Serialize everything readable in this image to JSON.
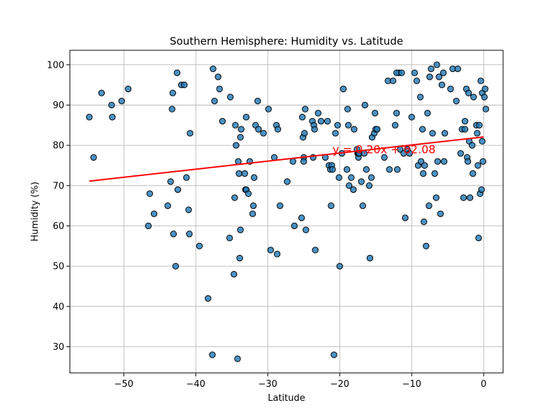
{
  "chart_data": {
    "type": "scatter",
    "title": "Southern Hemisphere: Humidity vs. Latitude",
    "xlabel": "Latitude",
    "ylabel": "Humidity (%)",
    "xlim": [
      -57.5,
      2.7
    ],
    "ylim": [
      23.5,
      103.6
    ],
    "xticks": [
      -50,
      -40,
      -30,
      -20,
      -10,
      0
    ],
    "yticks": [
      30,
      40,
      50,
      60,
      70,
      80,
      90,
      100
    ],
    "xtick_labels": [
      "−50",
      "−40",
      "−30",
      "−20",
      "−10",
      "0"
    ],
    "ytick_labels": [
      "30",
      "40",
      "50",
      "60",
      "70",
      "80",
      "90",
      "100"
    ],
    "grid": true,
    "marker_color": "#1f77b4",
    "regression": {
      "equation": "y = 0.20x + 82.08",
      "slope": 0.2,
      "intercept": 82.08,
      "x_range": [
        -54.8,
        0
      ],
      "color": "#ff0000",
      "annotation_position": [
        -21,
        78
      ]
    },
    "points": [
      [
        -54.8,
        87
      ],
      [
        -54.2,
        77
      ],
      [
        -53.1,
        93
      ],
      [
        -51.7,
        90
      ],
      [
        -51.6,
        87
      ],
      [
        -50.3,
        91
      ],
      [
        -49.4,
        94
      ],
      [
        -46.6,
        60
      ],
      [
        -46.4,
        68
      ],
      [
        -45.8,
        63
      ],
      [
        -43.9,
        65
      ],
      [
        -43.5,
        71
      ],
      [
        -43.3,
        89
      ],
      [
        -43.2,
        93
      ],
      [
        -43.1,
        58
      ],
      [
        -42.8,
        50
      ],
      [
        -42.6,
        98
      ],
      [
        -42.5,
        69
      ],
      [
        -42.0,
        95
      ],
      [
        -41.6,
        95
      ],
      [
        -41.3,
        72
      ],
      [
        -41.0,
        64
      ],
      [
        -40.9,
        58
      ],
      [
        -40.8,
        83
      ],
      [
        -39.5,
        55
      ],
      [
        -38.3,
        42
      ],
      [
        -37.7,
        28
      ],
      [
        -37.6,
        99
      ],
      [
        -37.4,
        91
      ],
      [
        -36.9,
        97
      ],
      [
        -36.7,
        94
      ],
      [
        -36.3,
        86
      ],
      [
        -35.3,
        57
      ],
      [
        -35.2,
        92
      ],
      [
        -34.7,
        48
      ],
      [
        -34.6,
        67
      ],
      [
        -34.5,
        85
      ],
      [
        -34.4,
        80
      ],
      [
        -34.2,
        27
      ],
      [
        -34.1,
        76
      ],
      [
        -34.0,
        73
      ],
      [
        -33.9,
        52
      ],
      [
        -33.8,
        59
      ],
      [
        -33.7,
        84
      ],
      [
        -33.8,
        82
      ],
      [
        -33.2,
        73
      ],
      [
        -33.1,
        69
      ],
      [
        -33.0,
        69
      ],
      [
        -33.0,
        87
      ],
      [
        -32.7,
        68
      ],
      [
        -32.5,
        76
      ],
      [
        -32.1,
        63
      ],
      [
        -32.0,
        65
      ],
      [
        -31.9,
        72
      ],
      [
        -31.7,
        85
      ],
      [
        -31.4,
        91
      ],
      [
        -31.3,
        84
      ],
      [
        -30.6,
        83
      ],
      [
        -29.9,
        89
      ],
      [
        -29.6,
        54
      ],
      [
        -29.1,
        77
      ],
      [
        -28.8,
        85
      ],
      [
        -28.6,
        84
      ],
      [
        -28.7,
        53
      ],
      [
        -28.3,
        65
      ],
      [
        -27.3,
        71
      ],
      [
        -26.5,
        76
      ],
      [
        -26.3,
        60
      ],
      [
        -25.3,
        62
      ],
      [
        -25.2,
        87
      ],
      [
        -25.1,
        82
      ],
      [
        -25.0,
        77
      ],
      [
        -25.0,
        76
      ],
      [
        -24.9,
        83
      ],
      [
        -24.8,
        89
      ],
      [
        -24.7,
        59
      ],
      [
        -23.8,
        86
      ],
      [
        -23.7,
        77
      ],
      [
        -23.6,
        85
      ],
      [
        -23.4,
        54
      ],
      [
        -23.5,
        84
      ],
      [
        -23.0,
        88
      ],
      [
        -22.6,
        86
      ],
      [
        -22.0,
        77
      ],
      [
        -21.7,
        86
      ],
      [
        -21.5,
        75
      ],
      [
        -21.3,
        74
      ],
      [
        -21.2,
        65
      ],
      [
        -21.1,
        75
      ],
      [
        -21.0,
        74
      ],
      [
        -20.8,
        28
      ],
      [
        -20.6,
        83
      ],
      [
        -20.3,
        85
      ],
      [
        -20.1,
        72
      ],
      [
        -20.0,
        50
      ],
      [
        -19.7,
        78
      ],
      [
        -19.5,
        94
      ],
      [
        -19.0,
        74
      ],
      [
        -18.9,
        89
      ],
      [
        -18.8,
        85
      ],
      [
        -18.7,
        70
      ],
      [
        -18.4,
        72
      ],
      [
        -18.1,
        69
      ],
      [
        -18.0,
        84
      ],
      [
        -17.6,
        79
      ],
      [
        -17.5,
        78
      ],
      [
        -17.4,
        77
      ],
      [
        -17.4,
        78
      ],
      [
        -17.3,
        78
      ],
      [
        -17.0,
        71
      ],
      [
        -16.8,
        65
      ],
      [
        -16.6,
        78
      ],
      [
        -16.5,
        90
      ],
      [
        -16.3,
        74
      ],
      [
        -15.9,
        70
      ],
      [
        -15.8,
        52
      ],
      [
        -15.6,
        72
      ],
      [
        -15.5,
        82
      ],
      [
        -15.2,
        83
      ],
      [
        -15.1,
        88
      ],
      [
        -15.0,
        84
      ],
      [
        -14.8,
        84
      ],
      [
        -13.8,
        77
      ],
      [
        -13.3,
        96
      ],
      [
        -13.1,
        74
      ],
      [
        -12.6,
        96
      ],
      [
        -12.3,
        85
      ],
      [
        -12.1,
        88
      ],
      [
        -12.0,
        74
      ],
      [
        -11.8,
        98
      ],
      [
        -12.1,
        98
      ],
      [
        -11.6,
        79
      ],
      [
        -11.4,
        98
      ],
      [
        -11.1,
        78
      ],
      [
        -10.9,
        62
      ],
      [
        -10.6,
        79
      ],
      [
        -10.3,
        78
      ],
      [
        -10.0,
        87
      ],
      [
        -9.6,
        98
      ],
      [
        -9.3,
        96
      ],
      [
        -9.1,
        75
      ],
      [
        -8.8,
        92
      ],
      [
        -8.7,
        76
      ],
      [
        -8.5,
        84
      ],
      [
        -8.4,
        73
      ],
      [
        -8.3,
        61
      ],
      [
        -8.2,
        75
      ],
      [
        -8.0,
        55
      ],
      [
        -7.8,
        88
      ],
      [
        -7.6,
        65
      ],
      [
        -7.5,
        97
      ],
      [
        -7.3,
        99
      ],
      [
        -7.1,
        83
      ],
      [
        -6.8,
        73
      ],
      [
        -6.6,
        67
      ],
      [
        -6.5,
        100
      ],
      [
        -6.4,
        76
      ],
      [
        -6.2,
        97
      ],
      [
        -6.0,
        63
      ],
      [
        -5.8,
        95
      ],
      [
        -5.6,
        98
      ],
      [
        -5.4,
        83
      ],
      [
        -5.5,
        76
      ],
      [
        -4.6,
        94
      ],
      [
        -4.3,
        99
      ],
      [
        -3.8,
        91
      ],
      [
        -3.6,
        99
      ],
      [
        -3.2,
        78
      ],
      [
        -3.0,
        84
      ],
      [
        -2.8,
        67
      ],
      [
        -2.6,
        86
      ],
      [
        -2.6,
        84
      ],
      [
        -2.4,
        94
      ],
      [
        -2.3,
        77
      ],
      [
        -2.2,
        76
      ],
      [
        -2.0,
        81
      ],
      [
        -2.1,
        93
      ],
      [
        -1.9,
        67
      ],
      [
        -1.6,
        80
      ],
      [
        -1.5,
        73
      ],
      [
        -1.4,
        92
      ],
      [
        -1.0,
        85
      ],
      [
        -0.9,
        83
      ],
      [
        -0.8,
        75
      ],
      [
        -0.7,
        57
      ],
      [
        -0.6,
        85
      ],
      [
        -0.5,
        68
      ],
      [
        -0.4,
        96
      ],
      [
        -0.3,
        69
      ],
      [
        -0.2,
        81
      ],
      [
        -0.2,
        93
      ],
      [
        -0.1,
        76
      ],
      [
        0.1,
        92
      ],
      [
        0.2,
        94
      ],
      [
        0.3,
        89
      ]
    ]
  }
}
